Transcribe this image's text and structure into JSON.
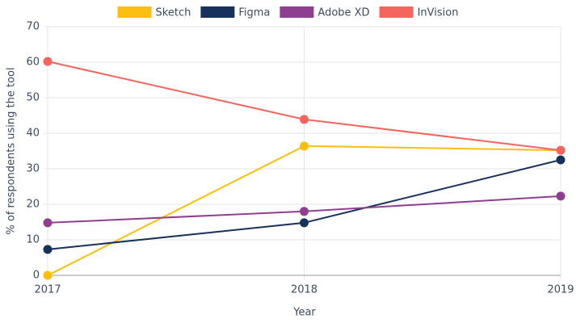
{
  "chart_data": {
    "type": "line",
    "x": [
      2017,
      2018,
      2019
    ],
    "xlim": [
      2017,
      2019
    ],
    "xticks": [
      2017,
      2018,
      2019
    ],
    "ylim": [
      0,
      70
    ],
    "yticks": [
      0,
      10,
      20,
      30,
      40,
      50,
      60,
      70
    ],
    "xlabel": "Year",
    "ylabel": "% of respondents using the tool",
    "grid": true,
    "legend": "top",
    "series": [
      {
        "name": "Sketch",
        "color": "#fdbe0f",
        "values": [
          0,
          36.4,
          35.2
        ]
      },
      {
        "name": "Figma",
        "color": "#16325c",
        "values": [
          7.3,
          14.8,
          32.5
        ]
      },
      {
        "name": "Adobe XD",
        "color": "#8f3f8f",
        "values": [
          14.8,
          18,
          22.3
        ]
      },
      {
        "name": "InVision",
        "color": "#f5645d",
        "values": [
          60.2,
          43.9,
          35.2
        ]
      }
    ]
  }
}
